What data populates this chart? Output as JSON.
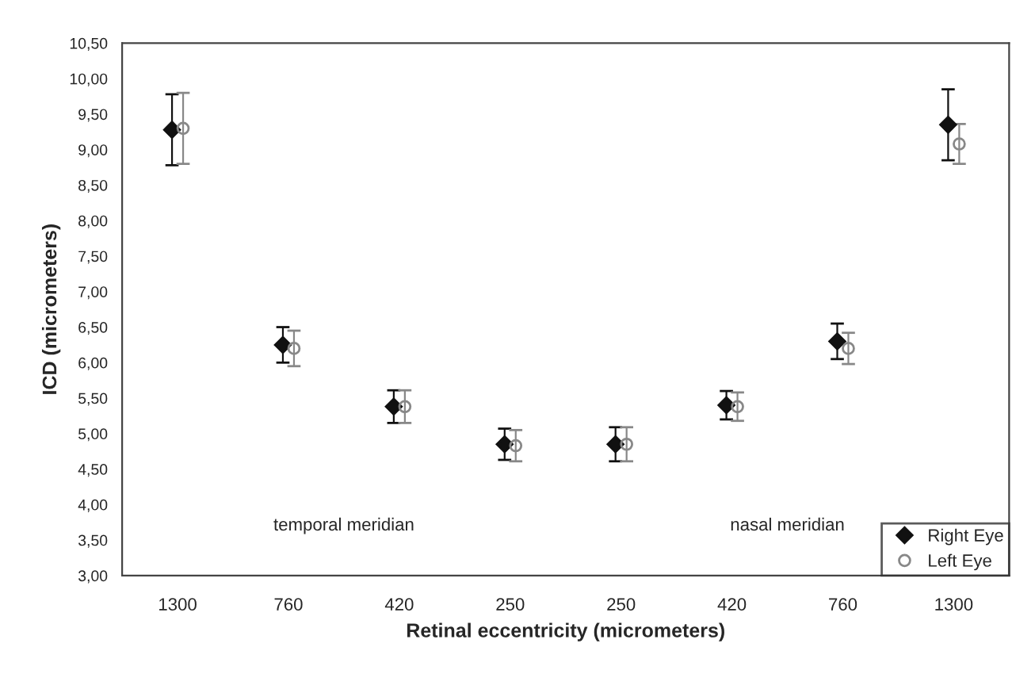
{
  "chart_data": {
    "type": "scatter",
    "xlabel": "Retinal eccentricity (micrometers)",
    "ylabel": "ICD (micrometers)",
    "categories": [
      "1300",
      "760",
      "420",
      "250",
      "250",
      "420",
      "760",
      "1300"
    ],
    "series": [
      {
        "name": "Right Eye",
        "color": "#111111",
        "marker": "diamond",
        "values": [
          9.28,
          6.25,
          5.38,
          4.85,
          4.85,
          5.4,
          6.3,
          9.35
        ],
        "errors": [
          0.5,
          0.25,
          0.23,
          0.22,
          0.24,
          0.2,
          0.25,
          0.5
        ]
      },
      {
        "name": "Left Eye",
        "color": "#888888",
        "marker": "circle",
        "values": [
          9.3,
          6.2,
          5.38,
          4.83,
          4.85,
          5.38,
          6.2,
          9.08
        ],
        "errors": [
          0.5,
          0.25,
          0.23,
          0.22,
          0.24,
          0.2,
          0.22,
          0.28
        ]
      }
    ],
    "annotations": [
      "temporal meridian",
      "nasal meridian"
    ],
    "ylim": [
      3,
      10.5
    ],
    "yticks": [
      {
        "value": 3,
        "label": "3,00"
      },
      {
        "value": 3.5,
        "label": "3,50"
      },
      {
        "value": 4,
        "label": "4,00"
      },
      {
        "value": 4.5,
        "label": "4,50"
      },
      {
        "value": 5,
        "label": "5,00"
      },
      {
        "value": 5.5,
        "label": "5,50"
      },
      {
        "value": 6,
        "label": "6,00"
      },
      {
        "value": 6.5,
        "label": "6,50"
      },
      {
        "value": 7,
        "label": "7,00"
      },
      {
        "value": 7.5,
        "label": "7,50"
      },
      {
        "value": 8,
        "label": "8,00"
      },
      {
        "value": 8.5,
        "label": "8,50"
      },
      {
        "value": 9,
        "label": "9,00"
      },
      {
        "value": 9.5,
        "label": "9,50"
      },
      {
        "value": 10,
        "label": "10,00"
      },
      {
        "value": 10.5,
        "label": "10,50"
      }
    ],
    "grid": false,
    "legend": "bottom right"
  }
}
